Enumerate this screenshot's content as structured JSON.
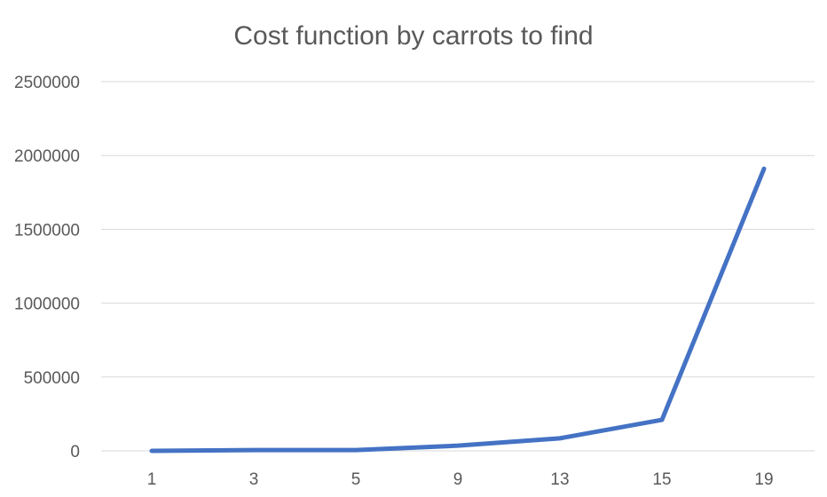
{
  "chart_data": {
    "type": "line",
    "title": "Cost function by carrots to find",
    "xlabel": "",
    "ylabel": "",
    "categories": [
      "1",
      "3",
      "5",
      "9",
      "13",
      "15",
      "19"
    ],
    "series": [
      {
        "values": [
          0,
          5000,
          5000,
          35000,
          85000,
          210000,
          1910000
        ],
        "color": "#4472c4"
      }
    ],
    "ylim": [
      0,
      2500000
    ],
    "yticks": [
      0,
      500000,
      1000000,
      1500000,
      2000000,
      2500000
    ],
    "ytick_labels": [
      "0",
      "500000",
      "1000000",
      "1500000",
      "2000000",
      "2500000"
    ],
    "grid": true,
    "legend": "none"
  }
}
